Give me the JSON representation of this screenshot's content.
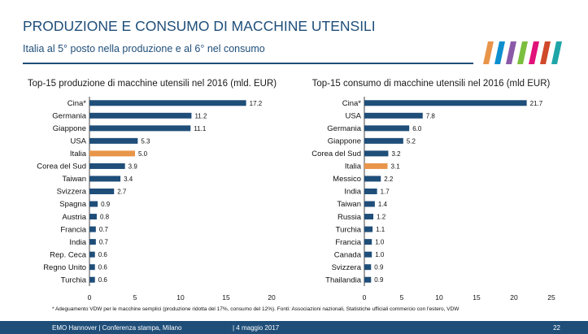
{
  "header": {
    "title": "PRODUZIONE E CONSUMO DI MACCHINE UTENSILI",
    "subtitle": "Italia al 5° posto nella produzione e al 6° nel consumo"
  },
  "colors": {
    "bar": "#1f4e79",
    "highlight": "#e8954a",
    "title_text": "#1f4e79",
    "footer_bg": "#1f4e79",
    "logo": [
      "#e8954a",
      "#0d8fcf",
      "#8a5aa8",
      "#7bbf3f",
      "#e1127a",
      "#d04a2a",
      "#1fa5a8"
    ]
  },
  "chart_data": [
    {
      "type": "bar",
      "orientation": "horizontal",
      "title": "Top-15 produzione di macchine utensili nel 2016 (mld. EUR)",
      "categories": [
        "Cina*",
        "Germania",
        "Giappone",
        "USA",
        "Italia",
        "Corea del Sud",
        "Taiwan",
        "Svizzera",
        "Spagna",
        "Austria",
        "Francia",
        "India",
        "Rep. Ceca",
        "Regno Unito",
        "Turchia"
      ],
      "values": [
        17.2,
        11.2,
        11.1,
        5.3,
        5.0,
        3.9,
        3.4,
        2.7,
        0.9,
        0.8,
        0.7,
        0.7,
        0.6,
        0.6,
        0.6
      ],
      "value_labels": [
        "17.2",
        "11.2",
        "11.1",
        "5.3",
        "5.0",
        "3.9",
        "3.4",
        "2.7",
        "0.9",
        "0.8",
        "0.7",
        "0.7",
        "0.6",
        "0.6",
        "0.6"
      ],
      "highlight": "Italia",
      "xlim": [
        0,
        20
      ],
      "xticks": [
        "0",
        "5",
        "10",
        "15",
        "20"
      ]
    },
    {
      "type": "bar",
      "orientation": "horizontal",
      "title": "Top-15 consumo di macchine utensili nel 2016 (mld EUR)",
      "categories": [
        "Cina*",
        "USA",
        "Germania",
        "Giappone",
        "Corea del Sud",
        "Italia",
        "Messico",
        "India",
        "Taiwan",
        "Russia",
        "Turchia",
        "Francia",
        "Canada",
        "Svizzera",
        "Thailandia"
      ],
      "values": [
        21.7,
        7.8,
        6.0,
        5.2,
        3.2,
        3.1,
        2.2,
        1.7,
        1.4,
        1.2,
        1.1,
        1.0,
        1.0,
        0.9,
        0.9
      ],
      "value_labels": [
        "21.7",
        "7.8",
        "6.0",
        "5.2",
        "3.2",
        "3.1",
        "2.2",
        "1.7",
        "1.4",
        "1.2",
        "1.1",
        "1.0",
        "1.0",
        "0.9",
        "0.9"
      ],
      "highlight": "Italia",
      "xlim": [
        0,
        25
      ],
      "xticks": [
        "0",
        "5",
        "10",
        "15",
        "20",
        "25"
      ]
    }
  ],
  "footnote": "* Adeguamento VDW per le macchine semplici (produzione ridotta del 17%, consumo del 12%). Fonti: Associazioni nazionali, Statistiche ufficiali commercio con l'estero, VDW",
  "footer": {
    "left": "EMO Hannover | Conferenza stampa, Milano",
    "mid": "| 4 maggio 2017",
    "page": "22"
  }
}
